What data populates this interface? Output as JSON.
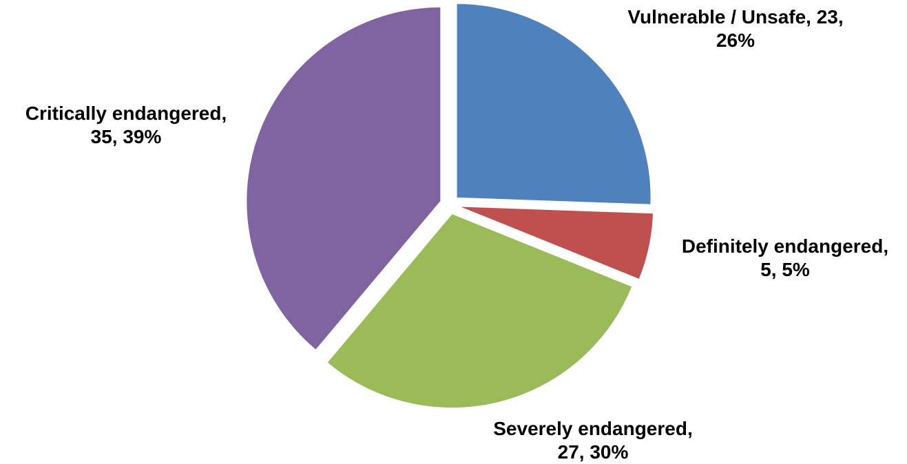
{
  "chart_data": {
    "type": "pie",
    "exploded": true,
    "start_angle_deg": 0,
    "direction": "clockwise",
    "slices": [
      {
        "name": "Vulnerable / Unsafe",
        "value": 23,
        "percent": "26%",
        "color": "#4F81BD",
        "label_lines": [
          "Vulnerable / Unsafe, 23,",
          "26%"
        ]
      },
      {
        "name": "Definitely endangered",
        "value": 5,
        "percent": "5%",
        "color": "#C0504D",
        "label_lines": [
          "Definitely endangered,",
          "5, 5%"
        ]
      },
      {
        "name": "Severely endangered",
        "value": 27,
        "percent": "30%",
        "color": "#9BBB59",
        "label_lines": [
          "Severely endangered,",
          "27, 30%"
        ]
      },
      {
        "name": "Critically endangered",
        "value": 35,
        "percent": "39%",
        "color": "#8064A2",
        "label_lines": [
          "Critically endangered,",
          "35, 39%"
        ]
      }
    ],
    "legend": "none"
  }
}
